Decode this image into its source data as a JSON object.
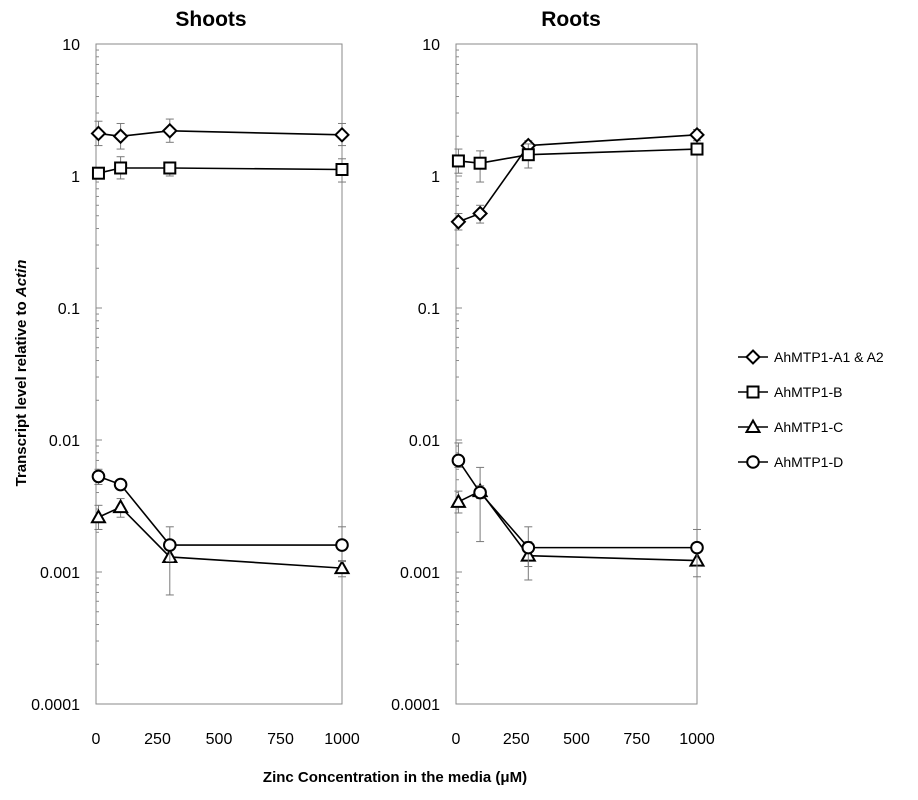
{
  "chart_data": {
    "type": "line",
    "y_scale": "log",
    "ylim": [
      0.0001,
      10
    ],
    "y_ticks": [
      "10",
      "1",
      "0.1",
      "0.01",
      "0.001",
      "0.0001"
    ],
    "x_ticks": [
      "0",
      "250",
      "500",
      "750",
      "1000"
    ],
    "xlim": [
      0,
      1000
    ],
    "ylabel_prefix": "Transcript level relative to ",
    "ylabel_italic": "Actin",
    "xlabel": "Zinc Concentration in the media (μM)",
    "grid": false,
    "legend_position": "right",
    "legend": [
      {
        "name": "AhMTP1-A1 & A2",
        "marker": "diamond"
      },
      {
        "name": "AhMTP1-B",
        "marker": "square"
      },
      {
        "name": "AhMTP1-C",
        "marker": "triangle"
      },
      {
        "name": "AhMTP1-D",
        "marker": "circle"
      }
    ],
    "panels": [
      {
        "title": "Shoots",
        "series": [
          {
            "name": "AhMTP1-A1 & A2",
            "marker": "diamond",
            "x": [
              10,
              100,
              300,
              1000
            ],
            "y": [
              2.1,
              2.0,
              2.2,
              2.05
            ],
            "err_low": [
              1.7,
              1.6,
              1.8,
              1.7
            ],
            "err_high": [
              2.6,
              2.5,
              2.7,
              2.5
            ]
          },
          {
            "name": "AhMTP1-B",
            "marker": "square",
            "x": [
              10,
              100,
              300,
              1000
            ],
            "y": [
              1.05,
              1.15,
              1.15,
              1.12
            ],
            "err_low": [
              0.95,
              0.95,
              1.0,
              0.9
            ],
            "err_high": [
              1.15,
              1.4,
              1.25,
              1.35
            ]
          },
          {
            "name": "AhMTP1-C",
            "marker": "triangle",
            "x": [
              10,
              100,
              300,
              1000
            ],
            "y": [
              0.0026,
              0.0031,
              0.0013,
              0.00107
            ],
            "err_low": [
              0.0021,
              0.0026,
              0.00067,
              0.00092
            ],
            "err_high": [
              0.0032,
              0.0036,
              0.0017,
              0.00122
            ]
          },
          {
            "name": "AhMTP1-D",
            "marker": "circle",
            "x": [
              10,
              100,
              300,
              1000
            ],
            "y": [
              0.0053,
              0.0046,
              0.0016,
              0.0016
            ],
            "err_low": [
              0.0046,
              0.0042,
              0.0012,
              0.0012
            ],
            "err_high": [
              0.006,
              0.005,
              0.0022,
              0.0022
            ]
          }
        ]
      },
      {
        "title": "Roots",
        "series": [
          {
            "name": "AhMTP1-A1 & A2",
            "marker": "diamond",
            "x": [
              10,
              100,
              300,
              1000
            ],
            "y": [
              0.45,
              0.52,
              1.7,
              2.05
            ],
            "err_low": [
              0.39,
              0.44,
              1.5,
              1.85
            ],
            "err_high": [
              0.52,
              0.6,
              1.85,
              2.25
            ]
          },
          {
            "name": "AhMTP1-B",
            "marker": "square",
            "x": [
              10,
              100,
              300,
              1000
            ],
            "y": [
              1.3,
              1.25,
              1.45,
              1.6
            ],
            "err_low": [
              1.05,
              0.9,
              1.15,
              1.45
            ],
            "err_high": [
              1.6,
              1.55,
              1.75,
              1.75
            ]
          },
          {
            "name": "AhMTP1-C",
            "marker": "triangle",
            "x": [
              10,
              100,
              300,
              1000
            ],
            "y": [
              0.0034,
              0.0041,
              0.00133,
              0.00122
            ],
            "err_low": [
              0.0028,
              0.0017,
              0.00087,
              0.00092
            ],
            "err_high": [
              0.0041,
              0.0062,
              0.0017,
              0.00145
            ]
          },
          {
            "name": "AhMTP1-D",
            "marker": "circle",
            "x": [
              10,
              100,
              300,
              1000
            ],
            "y": [
              0.007,
              0.004,
              0.00153,
              0.00153
            ],
            "err_low": [
              0.0062,
              0.0036,
              0.0011,
              0.0011
            ],
            "err_high": [
              0.0095,
              0.0045,
              0.0022,
              0.0021
            ]
          }
        ]
      }
    ]
  }
}
